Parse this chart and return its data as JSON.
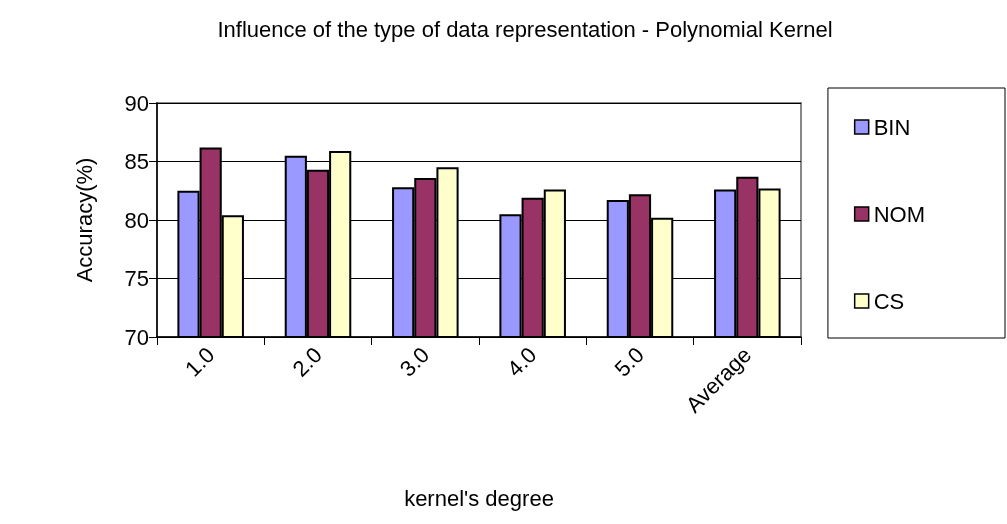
{
  "chart_data": {
    "type": "bar",
    "title": "Influence of the type of data representation - Polynomial Kernel",
    "xlabel": "kernel's degree",
    "ylabel": "Accuracy(%)",
    "categories": [
      "1.0",
      "2.0",
      "3.0",
      "4.0",
      "5.0",
      "Average"
    ],
    "series": [
      {
        "name": "BIN",
        "color": "#9999ff",
        "values": [
          82.5,
          85.5,
          82.8,
          80.5,
          81.7,
          82.6
        ]
      },
      {
        "name": "NOM",
        "color": "#993366",
        "values": [
          86.2,
          84.3,
          83.6,
          81.9,
          82.2,
          83.7
        ]
      },
      {
        "name": "CS",
        "color": "#ffffcc",
        "values": [
          80.4,
          85.9,
          84.5,
          82.6,
          80.2,
          82.7
        ]
      }
    ],
    "ylim": [
      70,
      90
    ],
    "yticks": [
      70,
      75,
      80,
      85,
      90
    ],
    "grid": "y",
    "legend": "right"
  }
}
